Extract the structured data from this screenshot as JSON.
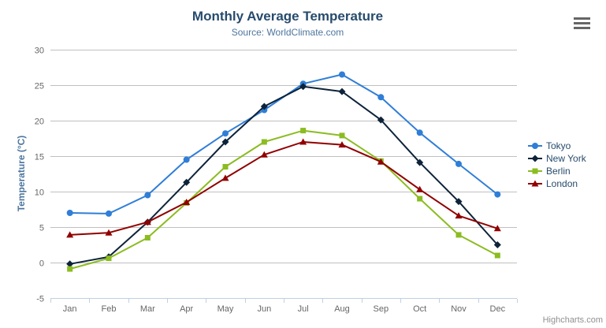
{
  "header": {
    "title": "Monthly Average Temperature",
    "subtitle": "Source: WorldClimate.com"
  },
  "icons": {
    "export_menu": "hamburger-icon"
  },
  "credits_label": "Highcharts.com",
  "colors": {
    "background": "#ffffff",
    "title": "#274b6d",
    "subtitle": "#4d759e",
    "axis_title": "#4d759e",
    "axis_label": "#666666",
    "grid": "#c0c0c0",
    "axis_line": "#c0d0e0",
    "legend_text": "#274b6d",
    "credits": "#909090",
    "menu_icon": "#666666",
    "tokyo": "#2f7ed8",
    "new_york": "#0d233a",
    "berlin": "#8bbc21",
    "london": "#910000"
  },
  "chart_data": {
    "type": "line",
    "title": "Monthly Average Temperature",
    "subtitle": "Source: WorldClimate.com",
    "xlabel": "",
    "ylabel": "Temperature (°C)",
    "ylim": [
      -5,
      30
    ],
    "ytick_step": 5,
    "grid": true,
    "legend_position": "right",
    "categories": [
      "Jan",
      "Feb",
      "Mar",
      "Apr",
      "May",
      "Jun",
      "Jul",
      "Aug",
      "Sep",
      "Oct",
      "Nov",
      "Dec"
    ],
    "series": [
      {
        "name": "Tokyo",
        "color": "#2f7ed8",
        "marker": "circle",
        "values": [
          7.0,
          6.9,
          9.5,
          14.5,
          18.2,
          21.5,
          25.2,
          26.5,
          23.3,
          18.3,
          13.9,
          9.6
        ]
      },
      {
        "name": "New York",
        "color": "#0d233a",
        "marker": "diamond",
        "values": [
          -0.2,
          0.8,
          5.7,
          11.3,
          17.0,
          22.0,
          24.8,
          24.1,
          20.1,
          14.1,
          8.6,
          2.5
        ]
      },
      {
        "name": "Berlin",
        "color": "#8bbc21",
        "marker": "square",
        "values": [
          -0.9,
          0.6,
          3.5,
          8.4,
          13.5,
          17.0,
          18.6,
          17.9,
          14.3,
          9.0,
          3.9,
          1.0
        ]
      },
      {
        "name": "London",
        "color": "#910000",
        "marker": "triangle",
        "values": [
          3.9,
          4.2,
          5.7,
          8.5,
          11.9,
          15.2,
          17.0,
          16.6,
          14.2,
          10.3,
          6.6,
          4.8
        ]
      }
    ]
  }
}
